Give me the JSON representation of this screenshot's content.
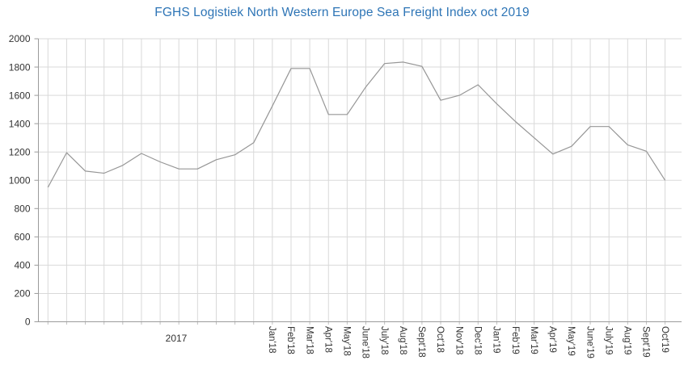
{
  "chart_data": {
    "type": "line",
    "title": "FGHS Logistiek North Western Europe Sea Freight Index oct 2019",
    "group_label": "2017",
    "categories": [
      "",
      "",
      "",
      "",
      "",
      "",
      "",
      "",
      "",
      "",
      "",
      "",
      "Jan'18",
      "Feb'18",
      "Mar'18",
      "Apr'18",
      "May'18",
      "June'18",
      "July'18",
      "Aug'18",
      "Sept'18",
      "Oct'18",
      "Nov'18",
      "Dec'18",
      "Jan'19",
      "Feb'19",
      "Mar'19",
      "Apr'19",
      "May'19",
      "June'19",
      "July'19",
      "Aug'19",
      "Sept'19",
      "Oct'19"
    ],
    "values": [
      950,
      1195,
      1065,
      1050,
      1105,
      1190,
      1130,
      1080,
      1080,
      1145,
      1180,
      1265,
      1525,
      1790,
      1790,
      1465,
      1465,
      1660,
      1825,
      1835,
      1805,
      1565,
      1600,
      1675,
      1540,
      1415,
      1300,
      1185,
      1240,
      1380,
      1380,
      1250,
      1205,
      1000
    ],
    "y_ticks": [
      0,
      200,
      400,
      600,
      800,
      1000,
      1200,
      1400,
      1600,
      1800,
      2000
    ],
    "ylim": [
      0,
      2000
    ],
    "grid": true,
    "legend": "none",
    "colors": {
      "title": "#2E75B6",
      "line": "#969696",
      "gridline": "#D9D9D9",
      "axis": "#9B9B9B",
      "tick": "#BFBFBF",
      "label": "#333333"
    }
  }
}
